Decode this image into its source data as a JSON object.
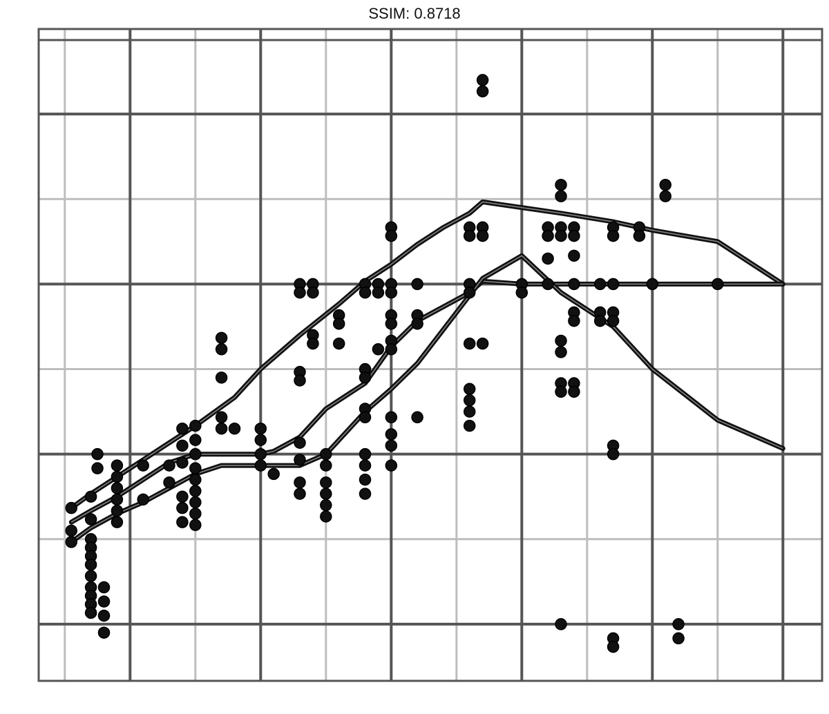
{
  "chart_data": {
    "type": "scatter",
    "title": "SSIM: 0.8718",
    "xlabel": "",
    "ylabel": "",
    "xlim": [
      1.3,
      7.3
    ],
    "ylim": [
      -2.0,
      21.0
    ],
    "grid": true,
    "major_x": [
      2,
      3,
      4,
      5,
      6,
      7
    ],
    "minor_x": [
      1.5,
      2.5,
      3.5,
      4.5,
      5.5,
      6.5
    ],
    "major_y": [
      0,
      6,
      12,
      18
    ],
    "minor_y": [
      3,
      9,
      15,
      21
    ],
    "x_tick_labels": [
      "",
      "",
      "",
      "",
      "",
      ""
    ],
    "y_tick_labels": [
      "",
      "",
      "",
      ""
    ],
    "points": [
      {
        "x": 1.55,
        "y": 4.1
      },
      {
        "x": 1.55,
        "y": 3.3
      },
      {
        "x": 1.55,
        "y": 2.9
      },
      {
        "x": 1.7,
        "y": 4.5
      },
      {
        "x": 1.7,
        "y": 3.7
      },
      {
        "x": 1.7,
        "y": 3.0
      },
      {
        "x": 1.7,
        "y": 2.7
      },
      {
        "x": 1.7,
        "y": 2.4
      },
      {
        "x": 1.7,
        "y": 2.1
      },
      {
        "x": 1.7,
        "y": 1.7
      },
      {
        "x": 1.7,
        "y": 1.3
      },
      {
        "x": 1.7,
        "y": 1.0
      },
      {
        "x": 1.7,
        "y": 0.7
      },
      {
        "x": 1.7,
        "y": 0.4
      },
      {
        "x": 1.75,
        "y": 6.0
      },
      {
        "x": 1.75,
        "y": 5.5
      },
      {
        "x": 1.8,
        "y": 1.3
      },
      {
        "x": 1.8,
        "y": 0.8
      },
      {
        "x": 1.8,
        "y": 0.3
      },
      {
        "x": 1.8,
        "y": -0.3
      },
      {
        "x": 1.9,
        "y": 5.6
      },
      {
        "x": 1.9,
        "y": 5.2
      },
      {
        "x": 1.9,
        "y": 4.8
      },
      {
        "x": 1.9,
        "y": 4.4
      },
      {
        "x": 1.9,
        "y": 4.0
      },
      {
        "x": 1.9,
        "y": 3.6
      },
      {
        "x": 2.1,
        "y": 5.6
      },
      {
        "x": 2.1,
        "y": 4.4
      },
      {
        "x": 2.3,
        "y": 5.6
      },
      {
        "x": 2.3,
        "y": 5.0
      },
      {
        "x": 2.4,
        "y": 6.9
      },
      {
        "x": 2.4,
        "y": 6.3
      },
      {
        "x": 2.4,
        "y": 5.7
      },
      {
        "x": 2.4,
        "y": 4.5
      },
      {
        "x": 2.4,
        "y": 4.1
      },
      {
        "x": 2.4,
        "y": 3.6
      },
      {
        "x": 2.5,
        "y": 7.0
      },
      {
        "x": 2.5,
        "y": 6.5
      },
      {
        "x": 2.5,
        "y": 6.0
      },
      {
        "x": 2.5,
        "y": 5.5
      },
      {
        "x": 2.5,
        "y": 5.1
      },
      {
        "x": 2.5,
        "y": 4.7
      },
      {
        "x": 2.5,
        "y": 4.3
      },
      {
        "x": 2.5,
        "y": 3.9
      },
      {
        "x": 2.5,
        "y": 3.5
      },
      {
        "x": 2.7,
        "y": 6.9
      },
      {
        "x": 2.7,
        "y": 7.3
      },
      {
        "x": 2.7,
        "y": 8.7
      },
      {
        "x": 2.7,
        "y": 9.7
      },
      {
        "x": 2.7,
        "y": 10.1
      },
      {
        "x": 2.8,
        "y": 6.9
      },
      {
        "x": 3.0,
        "y": 6.9
      },
      {
        "x": 3.0,
        "y": 6.5
      },
      {
        "x": 3.0,
        "y": 6.0
      },
      {
        "x": 3.0,
        "y": 5.6
      },
      {
        "x": 3.1,
        "y": 5.3
      },
      {
        "x": 3.3,
        "y": 5.0
      },
      {
        "x": 3.3,
        "y": 4.6
      },
      {
        "x": 3.3,
        "y": 5.8
      },
      {
        "x": 3.3,
        "y": 6.4
      },
      {
        "x": 3.3,
        "y": 8.9
      },
      {
        "x": 3.3,
        "y": 8.6
      },
      {
        "x": 3.3,
        "y": 12.0
      },
      {
        "x": 3.3,
        "y": 11.7
      },
      {
        "x": 3.4,
        "y": 12.0
      },
      {
        "x": 3.4,
        "y": 11.7
      },
      {
        "x": 3.4,
        "y": 10.2
      },
      {
        "x": 3.4,
        "y": 9.9
      },
      {
        "x": 3.5,
        "y": 6.0
      },
      {
        "x": 3.5,
        "y": 5.6
      },
      {
        "x": 3.5,
        "y": 5.0
      },
      {
        "x": 3.5,
        "y": 4.6
      },
      {
        "x": 3.5,
        "y": 4.2
      },
      {
        "x": 3.5,
        "y": 3.8
      },
      {
        "x": 3.6,
        "y": 10.9
      },
      {
        "x": 3.6,
        "y": 10.6
      },
      {
        "x": 3.6,
        "y": 9.9
      },
      {
        "x": 3.8,
        "y": 12.0
      },
      {
        "x": 3.8,
        "y": 11.7
      },
      {
        "x": 3.8,
        "y": 9.0
      },
      {
        "x": 3.8,
        "y": 8.7
      },
      {
        "x": 3.8,
        "y": 7.6
      },
      {
        "x": 3.8,
        "y": 7.3
      },
      {
        "x": 3.8,
        "y": 6.0
      },
      {
        "x": 3.8,
        "y": 5.6
      },
      {
        "x": 3.8,
        "y": 5.1
      },
      {
        "x": 3.8,
        "y": 4.6
      },
      {
        "x": 3.9,
        "y": 12.0
      },
      {
        "x": 3.9,
        "y": 11.7
      },
      {
        "x": 3.9,
        "y": 9.7
      },
      {
        "x": 4.0,
        "y": 14.0
      },
      {
        "x": 4.0,
        "y": 13.7
      },
      {
        "x": 4.0,
        "y": 12.0
      },
      {
        "x": 4.0,
        "y": 11.7
      },
      {
        "x": 4.0,
        "y": 10.9
      },
      {
        "x": 4.0,
        "y": 10.6
      },
      {
        "x": 4.0,
        "y": 10.0
      },
      {
        "x": 4.0,
        "y": 9.7
      },
      {
        "x": 4.0,
        "y": 7.3
      },
      {
        "x": 4.0,
        "y": 6.7
      },
      {
        "x": 4.0,
        "y": 6.3
      },
      {
        "x": 4.0,
        "y": 5.6
      },
      {
        "x": 4.2,
        "y": 12.0
      },
      {
        "x": 4.2,
        "y": 10.9
      },
      {
        "x": 4.2,
        "y": 10.6
      },
      {
        "x": 4.2,
        "y": 7.3
      },
      {
        "x": 4.6,
        "y": 14.0
      },
      {
        "x": 4.6,
        "y": 13.7
      },
      {
        "x": 4.6,
        "y": 12.0
      },
      {
        "x": 4.6,
        "y": 11.7
      },
      {
        "x": 4.6,
        "y": 9.9
      },
      {
        "x": 4.6,
        "y": 8.3
      },
      {
        "x": 4.6,
        "y": 7.9
      },
      {
        "x": 4.6,
        "y": 7.5
      },
      {
        "x": 4.6,
        "y": 7.0
      },
      {
        "x": 4.7,
        "y": 19.2
      },
      {
        "x": 4.7,
        "y": 18.8
      },
      {
        "x": 4.7,
        "y": 14.0
      },
      {
        "x": 4.7,
        "y": 13.7
      },
      {
        "x": 4.7,
        "y": 9.9
      },
      {
        "x": 5.0,
        "y": 12.0
      },
      {
        "x": 5.0,
        "y": 11.7
      },
      {
        "x": 5.2,
        "y": 14.0
      },
      {
        "x": 5.2,
        "y": 13.7
      },
      {
        "x": 5.2,
        "y": 12.9
      },
      {
        "x": 5.2,
        "y": 12.0
      },
      {
        "x": 5.3,
        "y": 15.5
      },
      {
        "x": 5.3,
        "y": 15.1
      },
      {
        "x": 5.3,
        "y": 14.0
      },
      {
        "x": 5.3,
        "y": 13.7
      },
      {
        "x": 5.3,
        "y": 10.0
      },
      {
        "x": 5.3,
        "y": 9.6
      },
      {
        "x": 5.3,
        "y": 8.5
      },
      {
        "x": 5.3,
        "y": 8.2
      },
      {
        "x": 5.3,
        "y": 0.0
      },
      {
        "x": 5.4,
        "y": 14.0
      },
      {
        "x": 5.4,
        "y": 13.7
      },
      {
        "x": 5.4,
        "y": 13.0
      },
      {
        "x": 5.4,
        "y": 12.0
      },
      {
        "x": 5.4,
        "y": 11.0
      },
      {
        "x": 5.4,
        "y": 10.7
      },
      {
        "x": 5.4,
        "y": 8.5
      },
      {
        "x": 5.4,
        "y": 8.2
      },
      {
        "x": 5.6,
        "y": 12.0
      },
      {
        "x": 5.6,
        "y": 11.0
      },
      {
        "x": 5.6,
        "y": 10.7
      },
      {
        "x": 5.7,
        "y": 14.0
      },
      {
        "x": 5.7,
        "y": 13.7
      },
      {
        "x": 5.7,
        "y": 12.0
      },
      {
        "x": 5.7,
        "y": 11.0
      },
      {
        "x": 5.7,
        "y": 10.7
      },
      {
        "x": 5.7,
        "y": 6.3
      },
      {
        "x": 5.7,
        "y": 6.0
      },
      {
        "x": 5.7,
        "y": -0.5
      },
      {
        "x": 5.7,
        "y": -0.8
      },
      {
        "x": 5.9,
        "y": 14.0
      },
      {
        "x": 5.9,
        "y": 13.7
      },
      {
        "x": 6.0,
        "y": 12.0
      },
      {
        "x": 6.1,
        "y": 15.5
      },
      {
        "x": 6.1,
        "y": 15.1
      },
      {
        "x": 6.2,
        "y": 0.0
      },
      {
        "x": 6.2,
        "y": -0.5
      },
      {
        "x": 6.5,
        "y": 12.0
      }
    ],
    "series": [
      {
        "x": [
          1.55,
          1.7,
          1.9,
          2.1,
          2.3,
          2.5,
          2.8,
          3.0,
          3.3,
          3.6,
          3.8,
          4.0,
          4.2,
          4.4,
          4.6,
          4.7,
          5.0,
          5.3,
          5.7,
          6.0,
          6.5,
          7.0
        ],
        "y": [
          4.1,
          4.6,
          5.2,
          5.8,
          6.4,
          7.0,
          8.0,
          9.0,
          10.2,
          11.3,
          12.1,
          12.7,
          13.4,
          14.0,
          14.5,
          14.9,
          14.7,
          14.5,
          14.2,
          13.9,
          13.5,
          12.0
        ]
      },
      {
        "x": [
          1.55,
          1.7,
          1.9,
          2.1,
          2.3,
          2.5,
          2.7,
          3.0,
          3.1,
          3.3,
          3.5,
          3.8,
          4.0,
          4.2,
          4.4,
          4.6,
          4.7,
          5.0,
          5.3,
          5.7,
          6.0,
          6.5,
          7.0
        ],
        "y": [
          3.6,
          4.0,
          4.5,
          5.1,
          5.7,
          6.0,
          6.0,
          6.0,
          6.1,
          6.6,
          7.6,
          8.5,
          9.8,
          10.7,
          11.2,
          11.7,
          12.1,
          12.0,
          12.0,
          12.0,
          12.0,
          12.0,
          12.0
        ]
      },
      {
        "x": [
          1.55,
          1.7,
          1.9,
          2.1,
          2.3,
          2.5,
          2.7,
          3.0,
          3.3,
          3.5,
          3.8,
          4.0,
          4.2,
          4.4,
          4.6,
          4.7,
          5.0,
          5.3,
          5.7,
          6.0,
          6.5,
          7.0
        ],
        "y": [
          2.9,
          3.4,
          3.9,
          4.3,
          4.8,
          5.3,
          5.6,
          5.6,
          5.6,
          6.0,
          7.5,
          8.3,
          9.2,
          10.4,
          11.6,
          12.2,
          13.0,
          11.7,
          10.5,
          9.0,
          7.2,
          6.2
        ]
      }
    ]
  }
}
